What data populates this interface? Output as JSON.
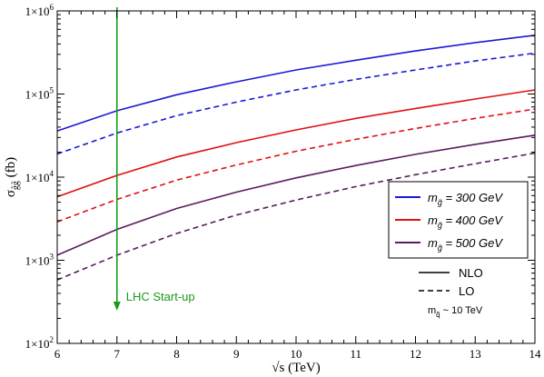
{
  "chart_data": {
    "type": "line",
    "title": "",
    "xlabel": "√s (TeV)",
    "ylabel": "σ g̃g̃ (fb)",
    "xlim": [
      6,
      14
    ],
    "ylim": [
      100,
      1000000
    ],
    "yscale": "log",
    "x_ticks": [
      6,
      7,
      8,
      9,
      10,
      11,
      12,
      13,
      14
    ],
    "x_tick_labels": [
      "6",
      "7",
      "8",
      "9",
      "10",
      "11",
      "12",
      "13",
      "14"
    ],
    "y_ticks": [
      100,
      1000,
      10000,
      100000,
      1000000
    ],
    "y_tick_labels": [
      {
        "base": "1×10",
        "exp": "2"
      },
      {
        "base": "1×10",
        "exp": "3"
      },
      {
        "base": "1×10",
        "exp": "4"
      },
      {
        "base": "1×10",
        "exp": "5"
      },
      {
        "base": "1×10",
        "exp": "6"
      }
    ],
    "grid": false,
    "legend_position": "right",
    "x": [
      6,
      7,
      8,
      9,
      10,
      11,
      12,
      13,
      14
    ],
    "series": [
      {
        "mass": "300",
        "order": "NLO",
        "color": "#1a1ad6",
        "dash": "solid",
        "values": [
          36000,
          63000,
          98000,
          140000,
          195000,
          255000,
          330000,
          415000,
          510000
        ]
      },
      {
        "mass": "300",
        "order": "LO",
        "color": "#1a1ad6",
        "dash": "dashed",
        "values": [
          19000,
          34000,
          55000,
          80000,
          112000,
          150000,
          195000,
          250000,
          310000
        ]
      },
      {
        "mass": "400",
        "order": "NLO",
        "color": "#e01010",
        "dash": "solid",
        "values": [
          5800,
          10500,
          17500,
          26000,
          37000,
          51000,
          67000,
          87000,
          112000
        ]
      },
      {
        "mass": "400",
        "order": "LO",
        "color": "#e01010",
        "dash": "dashed",
        "values": [
          2900,
          5400,
          9200,
          14000,
          20500,
          28500,
          38500,
          51000,
          66000
        ]
      },
      {
        "mass": "500",
        "order": "NLO",
        "color": "#5a1a5e",
        "dash": "solid",
        "values": [
          1150,
          2350,
          4200,
          6600,
          9800,
          13800,
          18800,
          24800,
          32000
        ]
      },
      {
        "mass": "500",
        "order": "LO",
        "color": "#5a1a5e",
        "dash": "dashed",
        "values": [
          580,
          1150,
          2100,
          3500,
          5300,
          7700,
          10700,
          14500,
          19500
        ]
      }
    ],
    "legend": {
      "mass_entries": [
        {
          "prefix": "m",
          "sub": "g̃",
          "text": " = 300 GeV",
          "color": "#1a1ad6"
        },
        {
          "prefix": "m",
          "sub": "g̃",
          "text": " = 400 GeV",
          "color": "#e01010"
        },
        {
          "prefix": "m",
          "sub": "g̃",
          "text": " = 500 GeV",
          "color": "#5a1a5e"
        }
      ],
      "order_entries": [
        {
          "label": "NLO",
          "dash": "solid"
        },
        {
          "label": "LO",
          "dash": "dashed"
        }
      ],
      "note": {
        "prefix": "m",
        "sub": "q̃",
        "text": " ~ 10 TeV"
      }
    },
    "annotation": {
      "text": "LHC Start-up",
      "x": 7,
      "color": "#1a9a1a"
    }
  }
}
